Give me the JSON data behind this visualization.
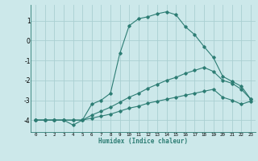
{
  "xlabel": "Humidex (Indice chaleur)",
  "background_color": "#cce8ea",
  "grid_color": "#aacfd2",
  "line_color": "#2d7d74",
  "xlim": [
    -0.5,
    23.5
  ],
  "ylim": [
    -4.6,
    1.8
  ],
  "yticks": [
    -4,
    -3,
    -2,
    -1,
    0,
    1
  ],
  "xticks": [
    0,
    1,
    2,
    3,
    4,
    5,
    6,
    7,
    8,
    9,
    10,
    11,
    12,
    13,
    14,
    15,
    16,
    17,
    18,
    19,
    20,
    21,
    22,
    23
  ],
  "line1_x": [
    0,
    1,
    2,
    3,
    4,
    5,
    6,
    7,
    8,
    9,
    10,
    11,
    12,
    13,
    14,
    15,
    16,
    17,
    18,
    19,
    20,
    21,
    22,
    23
  ],
  "line1_y": [
    -4.0,
    -4.0,
    -4.0,
    -4.0,
    -4.25,
    -4.0,
    -3.2,
    -3.0,
    -2.65,
    -0.65,
    0.75,
    1.1,
    1.2,
    1.35,
    1.45,
    1.3,
    0.7,
    0.3,
    -0.3,
    -0.85,
    -1.8,
    -2.05,
    -2.3,
    -2.95
  ],
  "line2_x": [
    0,
    1,
    2,
    3,
    4,
    5,
    6,
    7,
    8,
    9,
    10,
    11,
    12,
    13,
    14,
    15,
    16,
    17,
    18,
    19,
    20,
    21,
    22,
    23
  ],
  "line2_y": [
    -4.0,
    -4.0,
    -4.0,
    -4.0,
    -4.0,
    -4.0,
    -3.75,
    -3.55,
    -3.35,
    -3.1,
    -2.85,
    -2.65,
    -2.4,
    -2.2,
    -2.0,
    -1.85,
    -1.65,
    -1.5,
    -1.35,
    -1.55,
    -2.0,
    -2.15,
    -2.45,
    -2.95
  ],
  "line3_x": [
    0,
    1,
    2,
    3,
    4,
    5,
    6,
    7,
    8,
    9,
    10,
    11,
    12,
    13,
    14,
    15,
    16,
    17,
    18,
    19,
    20,
    21,
    22,
    23
  ],
  "line3_y": [
    -4.0,
    -4.0,
    -4.0,
    -4.0,
    -4.0,
    -4.0,
    -3.9,
    -3.8,
    -3.7,
    -3.55,
    -3.4,
    -3.3,
    -3.15,
    -3.05,
    -2.95,
    -2.85,
    -2.75,
    -2.65,
    -2.55,
    -2.45,
    -2.85,
    -3.0,
    -3.2,
    -3.05
  ]
}
